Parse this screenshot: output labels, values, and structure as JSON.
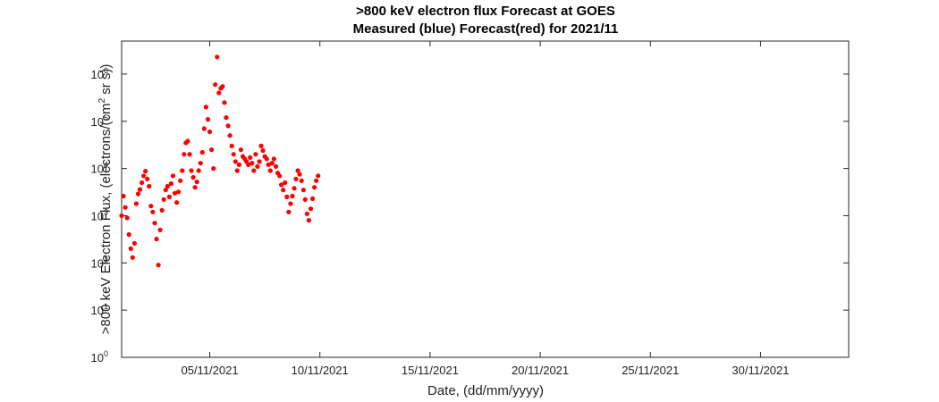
{
  "chart_data": {
    "type": "scatter",
    "title": ">800 keV electron flux Forecast at GOES",
    "subtitle": "Measured (blue) Forecast(red) for 2021/11",
    "xlabel": "Date, (dd/mm/yyyy)",
    "ylabel_prefix": ">800 keV Electron Flux, (electrons/(cm",
    "ylabel_sup": "2",
    "ylabel_suffix": " sr s))",
    "xscale": "date",
    "yscale": "log",
    "xlim": [
      "2021-11-01",
      "2021-12-04"
    ],
    "ylim": [
      1,
      5000000
    ],
    "xticks": [
      {
        "date": "2021-11-05",
        "label": "05/11/2021"
      },
      {
        "date": "2021-11-10",
        "label": "10/11/2021"
      },
      {
        "date": "2021-11-15",
        "label": "15/11/2021"
      },
      {
        "date": "2021-11-20",
        "label": "20/11/2021"
      },
      {
        "date": "2021-11-25",
        "label": "25/11/2021"
      },
      {
        "date": "2021-11-30",
        "label": "30/11/2021"
      }
    ],
    "yticks": [
      {
        "value": 1,
        "base": "10",
        "exp": "0"
      },
      {
        "value": 10,
        "base": "10",
        "exp": "1"
      },
      {
        "value": 100,
        "base": "10",
        "exp": "2"
      },
      {
        "value": 1000,
        "base": "10",
        "exp": "3"
      },
      {
        "value": 10000,
        "base": "10",
        "exp": "4"
      },
      {
        "value": 100000,
        "base": "10",
        "exp": "5"
      },
      {
        "value": 1000000,
        "base": "10",
        "exp": "6"
      }
    ],
    "grid": false,
    "series": [
      {
        "color": "#ff0000",
        "points": [
          [
            "2021-11-01T00:00",
            1000
          ],
          [
            "2021-11-01T02:00",
            2600
          ],
          [
            "2021-11-01T04:00",
            1500
          ],
          [
            "2021-11-01T06:00",
            900
          ],
          [
            "2021-11-01T08:00",
            400
          ],
          [
            "2021-11-01T10:00",
            200
          ],
          [
            "2021-11-01T12:00",
            130
          ],
          [
            "2021-11-01T14:00",
            260
          ],
          [
            "2021-11-01T16:00",
            1800
          ],
          [
            "2021-11-01T18:00",
            2900
          ],
          [
            "2021-11-01T20:00",
            3600
          ],
          [
            "2021-11-01T22:00",
            5000
          ],
          [
            "2021-11-02T00:00",
            7000
          ],
          [
            "2021-11-02T02:00",
            8800
          ],
          [
            "2021-11-02T04:00",
            6000
          ],
          [
            "2021-11-02T06:00",
            4200
          ],
          [
            "2021-11-02T08:00",
            1600
          ],
          [
            "2021-11-02T10:00",
            1200
          ],
          [
            "2021-11-02T12:00",
            700
          ],
          [
            "2021-11-02T14:00",
            320
          ],
          [
            "2021-11-02T16:00",
            90
          ],
          [
            "2021-11-02T18:00",
            500
          ],
          [
            "2021-11-02T20:00",
            1300
          ],
          [
            "2021-11-02T22:00",
            2200
          ],
          [
            "2021-11-03T00:00",
            3500
          ],
          [
            "2021-11-03T02:00",
            4200
          ],
          [
            "2021-11-03T04:00",
            2500
          ],
          [
            "2021-11-03T06:00",
            4800
          ],
          [
            "2021-11-03T08:00",
            7000
          ],
          [
            "2021-11-03T10:00",
            3000
          ],
          [
            "2021-11-03T12:00",
            1900
          ],
          [
            "2021-11-03T14:00",
            3200
          ],
          [
            "2021-11-03T16:00",
            5500
          ],
          [
            "2021-11-03T18:00",
            9000
          ],
          [
            "2021-11-03T20:00",
            20000
          ],
          [
            "2021-11-03T22:00",
            35000
          ],
          [
            "2021-11-04T00:00",
            38000
          ],
          [
            "2021-11-04T02:00",
            20000
          ],
          [
            "2021-11-04T04:00",
            9000
          ],
          [
            "2021-11-04T06:00",
            6500
          ],
          [
            "2021-11-04T08:00",
            4000
          ],
          [
            "2021-11-04T10:00",
            5200
          ],
          [
            "2021-11-04T12:00",
            9000
          ],
          [
            "2021-11-04T14:00",
            13000
          ],
          [
            "2021-11-04T16:00",
            22000
          ],
          [
            "2021-11-04T18:00",
            70000
          ],
          [
            "2021-11-04T20:00",
            200000
          ],
          [
            "2021-11-04T22:00",
            110000
          ],
          [
            "2021-11-05T00:00",
            60000
          ],
          [
            "2021-11-05T02:00",
            25000
          ],
          [
            "2021-11-05T04:00",
            10000
          ],
          [
            "2021-11-05T06:00",
            600000
          ],
          [
            "2021-11-05T08:00",
            2300000
          ],
          [
            "2021-11-05T10:00",
            400000
          ],
          [
            "2021-11-05T12:00",
            500000
          ],
          [
            "2021-11-05T14:00",
            550000
          ],
          [
            "2021-11-05T16:00",
            250000
          ],
          [
            "2021-11-05T18:00",
            120000
          ],
          [
            "2021-11-05T20:00",
            80000
          ],
          [
            "2021-11-05T22:00",
            50000
          ],
          [
            "2021-11-06T00:00",
            30000
          ],
          [
            "2021-11-06T02:00",
            20000
          ],
          [
            "2021-11-06T04:00",
            14000
          ],
          [
            "2021-11-06T06:00",
            9000
          ],
          [
            "2021-11-06T08:00",
            12000
          ],
          [
            "2021-11-06T10:00",
            25000
          ],
          [
            "2021-11-06T12:00",
            18000
          ],
          [
            "2021-11-06T14:00",
            16000
          ],
          [
            "2021-11-06T16:00",
            14000
          ],
          [
            "2021-11-06T18:00",
            12000
          ],
          [
            "2021-11-06T20:00",
            17000
          ],
          [
            "2021-11-06T22:00",
            13000
          ],
          [
            "2021-11-07T00:00",
            9000
          ],
          [
            "2021-11-07T02:00",
            20000
          ],
          [
            "2021-11-07T04:00",
            11000
          ],
          [
            "2021-11-07T06:00",
            14000
          ],
          [
            "2021-11-07T08:00",
            30000
          ],
          [
            "2021-11-07T10:00",
            24000
          ],
          [
            "2021-11-07T12:00",
            18000
          ],
          [
            "2021-11-07T14:00",
            16000
          ],
          [
            "2021-11-07T16:00",
            12000
          ],
          [
            "2021-11-07T18:00",
            9000
          ],
          [
            "2021-11-07T20:00",
            13000
          ],
          [
            "2021-11-07T22:00",
            16000
          ],
          [
            "2021-11-08T00:00",
            11000
          ],
          [
            "2021-11-08T02:00",
            8000
          ],
          [
            "2021-11-08T04:00",
            7000
          ],
          [
            "2021-11-08T06:00",
            4500
          ],
          [
            "2021-11-08T08:00",
            3500
          ],
          [
            "2021-11-08T10:00",
            5000
          ],
          [
            "2021-11-08T12:00",
            2500
          ],
          [
            "2021-11-08T14:00",
            1200
          ],
          [
            "2021-11-08T16:00",
            1800
          ],
          [
            "2021-11-08T18:00",
            2600
          ],
          [
            "2021-11-08T20:00",
            3800
          ],
          [
            "2021-11-08T22:00",
            6000
          ],
          [
            "2021-11-09T00:00",
            9000
          ],
          [
            "2021-11-09T02:00",
            7500
          ],
          [
            "2021-11-09T04:00",
            5500
          ],
          [
            "2021-11-09T06:00",
            3500
          ],
          [
            "2021-11-09T08:00",
            2200
          ],
          [
            "2021-11-09T10:00",
            1100
          ],
          [
            "2021-11-09T12:00",
            800
          ],
          [
            "2021-11-09T14:00",
            1400
          ],
          [
            "2021-11-09T16:00",
            2300
          ],
          [
            "2021-11-09T18:00",
            4000
          ],
          [
            "2021-11-09T20:00",
            5500
          ],
          [
            "2021-11-09T22:00",
            7000
          ]
        ]
      }
    ]
  }
}
